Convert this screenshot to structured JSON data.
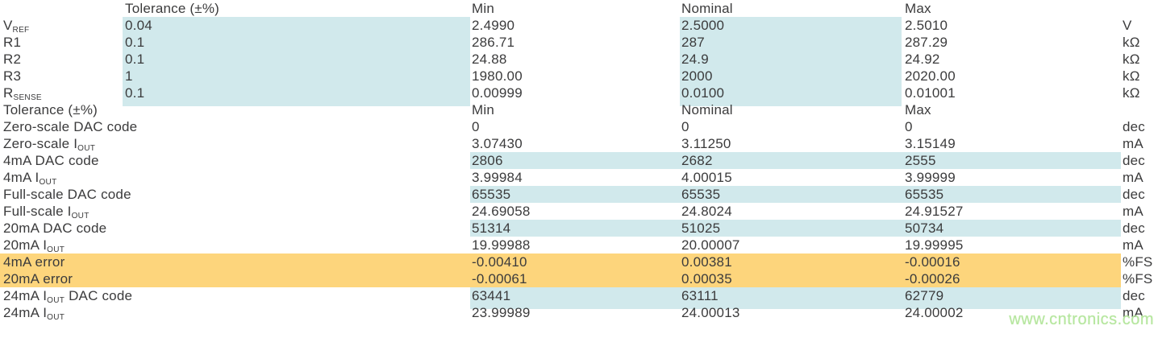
{
  "colors": {
    "text": "#3b3b3c",
    "highlight_blue": "#d1e9ec",
    "highlight_orange": "#fdd57c",
    "watermark_green": "#b5e69e",
    "background": "#ffffff"
  },
  "watermark": {
    "text": "www.cntronics.com"
  },
  "table": {
    "sections": [
      {
        "header": {
          "label": "",
          "tolerance": "Tolerance (±%)",
          "min": "Min",
          "nominal": "Nominal",
          "max": "Max",
          "unit": ""
        },
        "rows": [
          {
            "label_pre": "V",
            "label_sub": "REF",
            "label_post": "",
            "tolerance": "0.04",
            "min": "2.4990",
            "nominal": "2.5000",
            "max": "2.5010",
            "unit": "V",
            "highlight": "tol-nom"
          },
          {
            "label_pre": "R1",
            "label_sub": "",
            "label_post": "",
            "tolerance": "0.1",
            "min": "286.71",
            "nominal": "287",
            "max": "287.29",
            "unit": "kΩ",
            "highlight": "tol-nom"
          },
          {
            "label_pre": "R2",
            "label_sub": "",
            "label_post": "",
            "tolerance": "0.1",
            "min": "24.88",
            "nominal": "24.9",
            "max": "24.92",
            "unit": "kΩ",
            "highlight": "tol-nom"
          },
          {
            "label_pre": "R3",
            "label_sub": "",
            "label_post": "",
            "tolerance": "1",
            "min": "1980.00",
            "nominal": "2000",
            "max": "2020.00",
            "unit": "kΩ",
            "highlight": "tol-nom"
          },
          {
            "label_pre": "R",
            "label_sub": "SENSE",
            "label_post": "",
            "tolerance": "0.1",
            "min": "0.00999",
            "nominal": "0.0100",
            "max": "0.01001",
            "unit": "kΩ",
            "highlight": "tol-nom"
          }
        ]
      },
      {
        "header": {
          "label": "Tolerance (±%)",
          "tolerance": "",
          "min": "Min",
          "nominal": "Nominal",
          "max": "Max",
          "unit": ""
        },
        "rows": [
          {
            "label_pre": "Zero-scale DAC code",
            "label_sub": "",
            "label_post": "",
            "tolerance": "",
            "min": "0",
            "nominal": "0",
            "max": "0",
            "unit": "dec",
            "highlight": "none"
          },
          {
            "label_pre": "Zero-scale I",
            "label_sub": "OUT",
            "label_post": "",
            "tolerance": "",
            "min": "3.07430",
            "nominal": "3.11250",
            "max": "3.15149",
            "unit": "mA",
            "highlight": "none"
          },
          {
            "label_pre": "4mA DAC code",
            "label_sub": "",
            "label_post": "",
            "tolerance": "",
            "min": "2806",
            "nominal": "2682",
            "max": "2555",
            "unit": "dec",
            "highlight": "blue-row"
          },
          {
            "label_pre": "4mA I",
            "label_sub": "OUT",
            "label_post": "",
            "tolerance": "",
            "min": "3.99984",
            "nominal": "4.00015",
            "max": "3.99999",
            "unit": "mA",
            "highlight": "none"
          },
          {
            "label_pre": "Full-scale DAC code",
            "label_sub": "",
            "label_post": "",
            "tolerance": "",
            "min": "65535",
            "nominal": "65535",
            "max": "65535",
            "unit": "dec",
            "highlight": "blue-row"
          },
          {
            "label_pre": "Full-scale I",
            "label_sub": "OUT",
            "label_post": "",
            "tolerance": "",
            "min": "24.69058",
            "nominal": "24.8024",
            "max": "24.91527",
            "unit": "mA",
            "highlight": "none"
          },
          {
            "label_pre": "20mA DAC code",
            "label_sub": "",
            "label_post": "",
            "tolerance": "",
            "min": "51314",
            "nominal": "51025",
            "max": "50734",
            "unit": "dec",
            "highlight": "blue-row"
          },
          {
            "label_pre": "20mA I",
            "label_sub": "OUT",
            "label_post": "",
            "tolerance": "",
            "min": "19.99988",
            "nominal": "20.00007",
            "max": "19.99995",
            "unit": "mA",
            "highlight": "none"
          },
          {
            "label_pre": "4mA error",
            "label_sub": "",
            "label_post": "",
            "tolerance": "",
            "min": "-0.00410",
            "nominal": "0.00381",
            "max": "-0.00016",
            "unit": "%FS",
            "highlight": "orange-row"
          },
          {
            "label_pre": "20mA error",
            "label_sub": "",
            "label_post": "",
            "tolerance": "",
            "min": "-0.00061",
            "nominal": "0.00035",
            "max": "-0.00026",
            "unit": "%FS",
            "highlight": "orange-row"
          },
          {
            "label_pre": "24mA I",
            "label_sub": "OUT",
            "label_post": " DAC code",
            "tolerance": "",
            "min": "63441",
            "nominal": "63111",
            "max": "62779",
            "unit": "dec",
            "highlight": "blue-row"
          },
          {
            "label_pre": "24mA I",
            "label_sub": "OUT",
            "label_post": "",
            "tolerance": "",
            "min": "23.99989",
            "nominal": "24.00013",
            "max": "24.00002",
            "unit": "mA",
            "highlight": "none"
          }
        ]
      }
    ]
  }
}
